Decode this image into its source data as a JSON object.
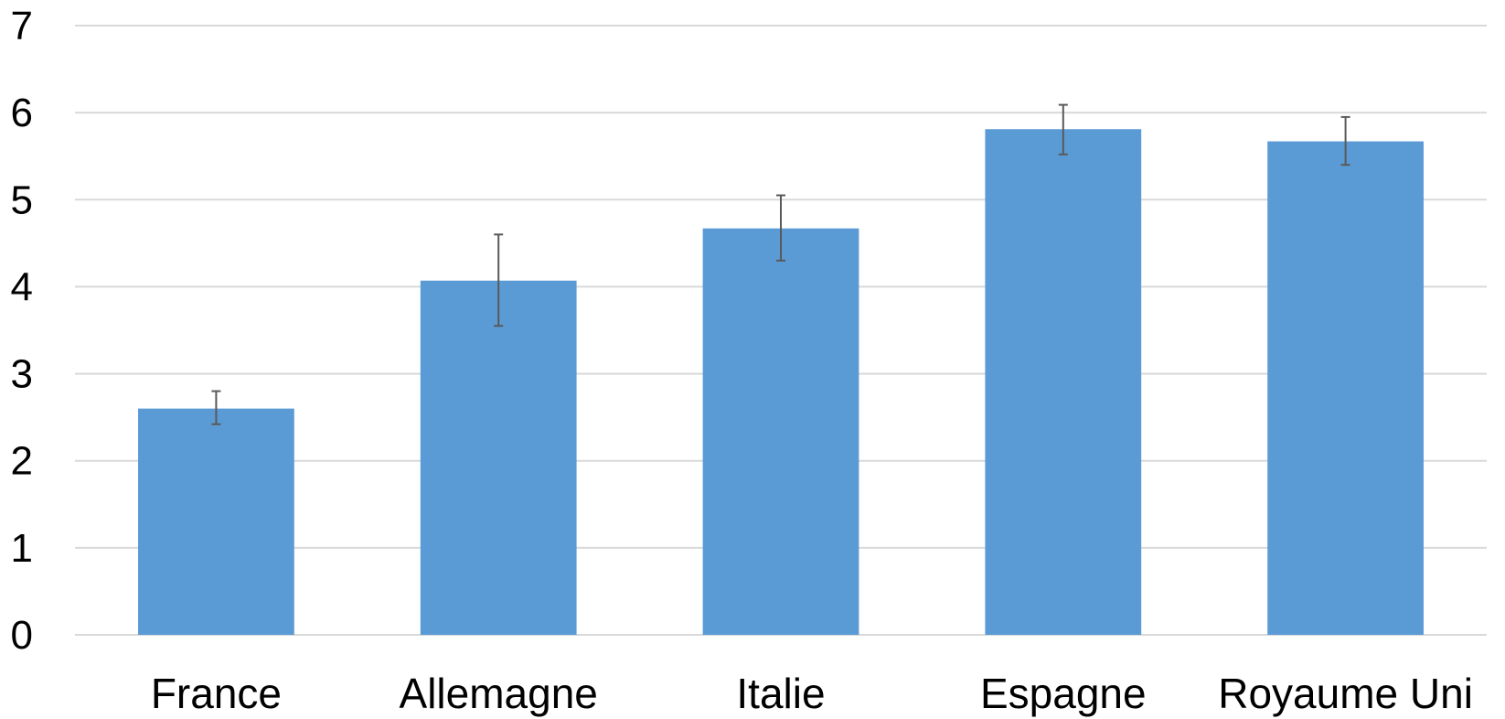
{
  "chart_data": {
    "type": "bar",
    "categories": [
      "France",
      "Allemagne",
      "Italie",
      "Espagne",
      "Royaume Uni"
    ],
    "values": [
      2.6,
      4.07,
      4.67,
      5.81,
      5.67
    ],
    "error_bars": [
      {
        "low": 2.42,
        "high": 2.8
      },
      {
        "low": 3.55,
        "high": 4.6
      },
      {
        "low": 4.3,
        "high": 5.05
      },
      {
        "low": 5.52,
        "high": 6.09
      },
      {
        "low": 5.4,
        "high": 5.95
      }
    ],
    "ylim": [
      0,
      7
    ],
    "yticks": [
      "0",
      "1",
      "2",
      "3",
      "4",
      "5",
      "6",
      "7"
    ],
    "grid": true,
    "colors": {
      "bar": "#5b9bd5",
      "gridline": "#d9d9d9",
      "baseline": "#d9d9d9",
      "error_bar": "#595959"
    }
  }
}
